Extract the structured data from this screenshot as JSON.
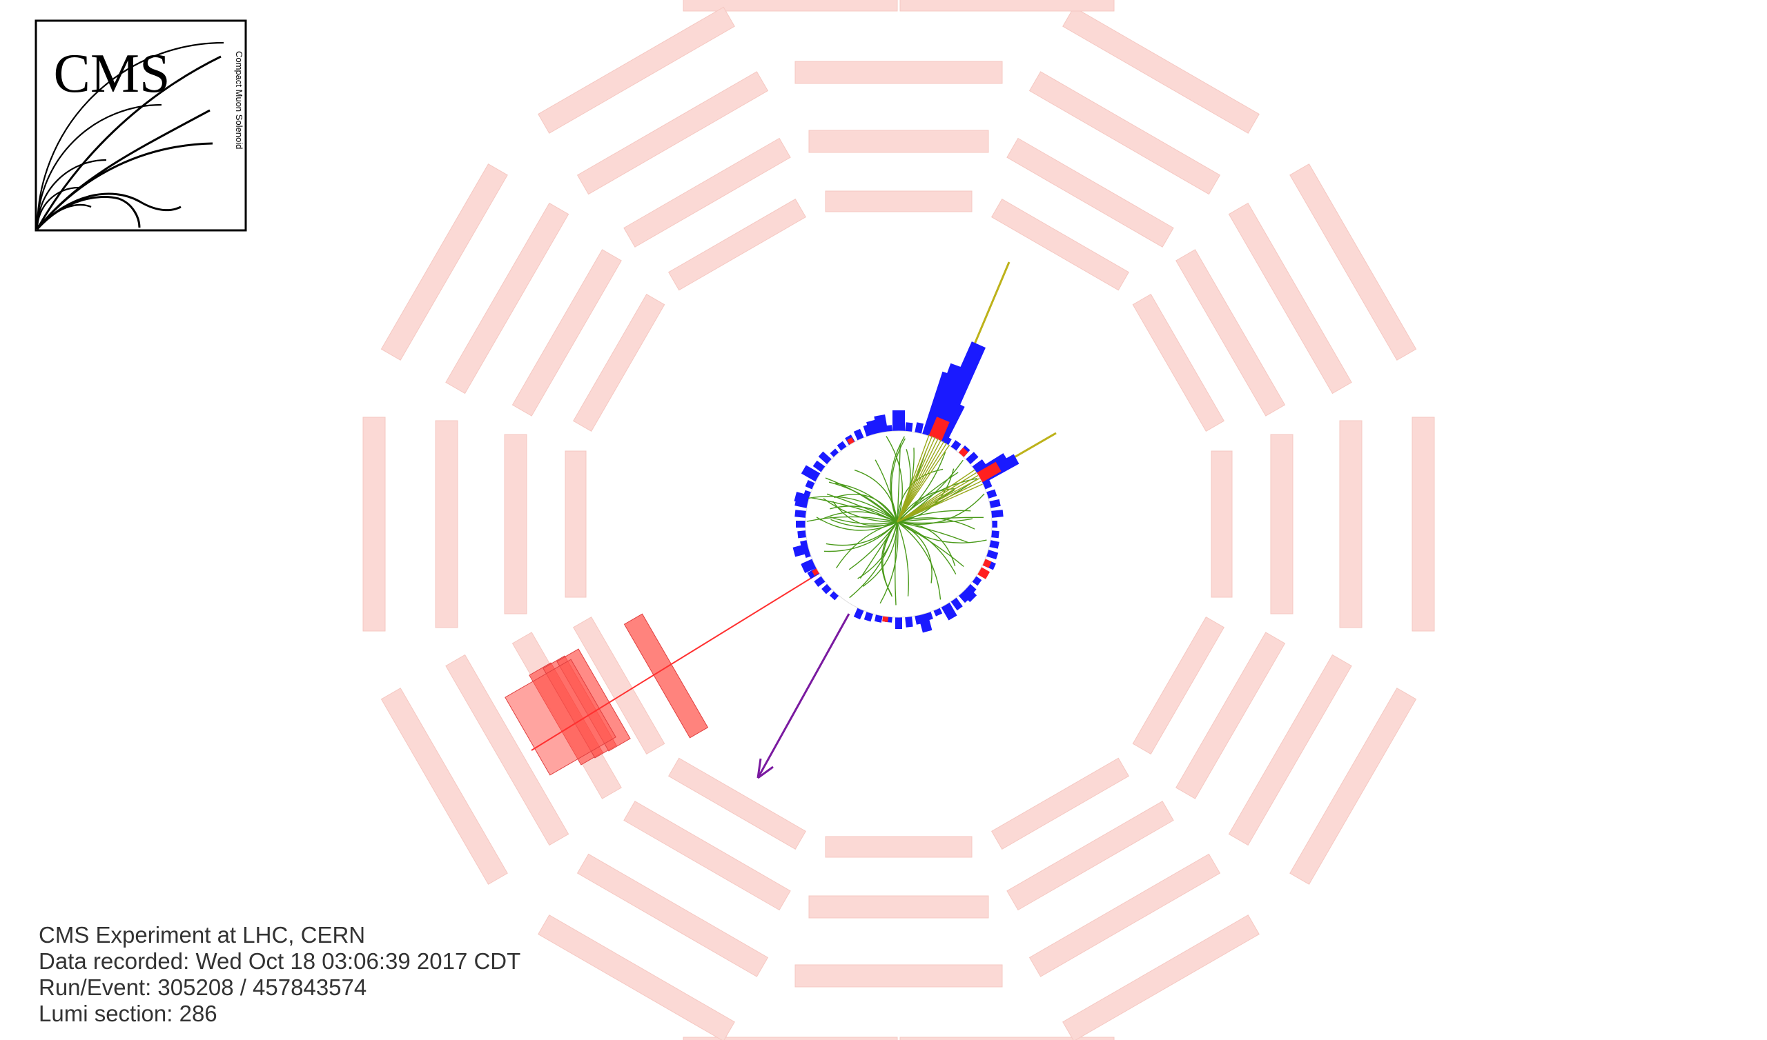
{
  "logo": {
    "text": "CMS",
    "subtitle": "Compact Muon Solenoid"
  },
  "event_info": {
    "line1": "CMS Experiment at LHC, CERN",
    "line2": "Data recorded: Wed Oct 18 03:06:39 2017 CDT",
    "line3": "Run/Event: 305208 / 457843574",
    "line4": "Lumi section: 286"
  },
  "colors": {
    "muon_chamber": "#fbd9d5",
    "muon_chamber_hit": "#ff5a52",
    "hcal": "#1a1aff",
    "ecal": "#ff2020",
    "track": "#4a9a1a",
    "jet": "#bdb21a",
    "muon_track": "#ff3030",
    "met": "#7a1aa0"
  }
}
